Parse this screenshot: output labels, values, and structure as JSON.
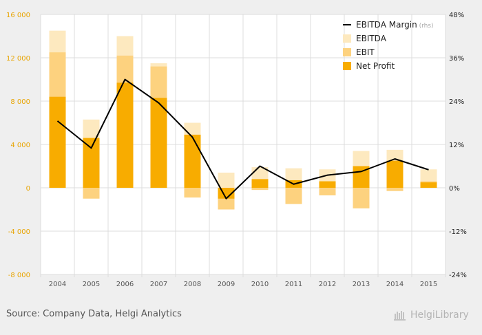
{
  "chart_data": {
    "type": "bar",
    "categories": [
      "2004",
      "2005",
      "2006",
      "2007",
      "2008",
      "2009",
      "2010",
      "2011",
      "2012",
      "2013",
      "2014",
      "2015"
    ],
    "series": [
      {
        "name": "EBITDA",
        "kind": "bar",
        "axis": "left",
        "color": "#fde9bf",
        "values": [
          14500,
          6300,
          14000,
          11500,
          6000,
          1400,
          1900,
          1800,
          1700,
          3400,
          3500,
          1700
        ]
      },
      {
        "name": "EBIT",
        "kind": "bar",
        "axis": "left",
        "color": "#fdd27f",
        "values": [
          12500,
          -1000,
          12200,
          11200,
          -900,
          -2000,
          -200,
          -1500,
          -700,
          -1900,
          -300,
          600
        ]
      },
      {
        "name": "Net Profit",
        "kind": "bar",
        "axis": "left",
        "color": "#f8ac00",
        "values": [
          8400,
          4600,
          9700,
          8300,
          4900,
          -1000,
          800,
          700,
          600,
          2000,
          2500,
          500
        ]
      },
      {
        "name": "EBITDA Margin",
        "kind": "line",
        "axis": "right",
        "color": "#000000",
        "values": [
          18.5,
          11,
          30,
          23.5,
          14,
          -3,
          6,
          1,
          3.5,
          4.5,
          8,
          5
        ]
      }
    ],
    "yaxis_left": {
      "min": -8000,
      "max": 16000,
      "ticks": [
        -8000,
        -4000,
        0,
        4000,
        8000,
        12000,
        16000
      ],
      "tick_labels": [
        "-8 000",
        "-4 000",
        "0",
        "4 000",
        "8 000",
        "12 000",
        "16 000"
      ]
    },
    "yaxis_right": {
      "min": -24,
      "max": 48,
      "ticks": [
        -24,
        -12,
        0,
        12,
        24,
        36,
        48
      ],
      "tick_labels": [
        "-24%",
        "-12%",
        "0%",
        "12%",
        "24%",
        "36%",
        "48%"
      ]
    },
    "legend": {
      "placement": "top-right",
      "rhs_note": "(rhs)",
      "order": [
        "EBITDA Margin",
        "EBITDA",
        "EBIT",
        "Net Profit"
      ]
    },
    "grid": true,
    "colors": {
      "axis_label": "#e8a400",
      "tick_text": "#555555",
      "grid": "#dcdcdc",
      "plot_bg": "#ffffff"
    }
  },
  "footer": {
    "source": "Source: Company Data, Helgi Analytics",
    "logo_text": "HelgiLibrary"
  }
}
